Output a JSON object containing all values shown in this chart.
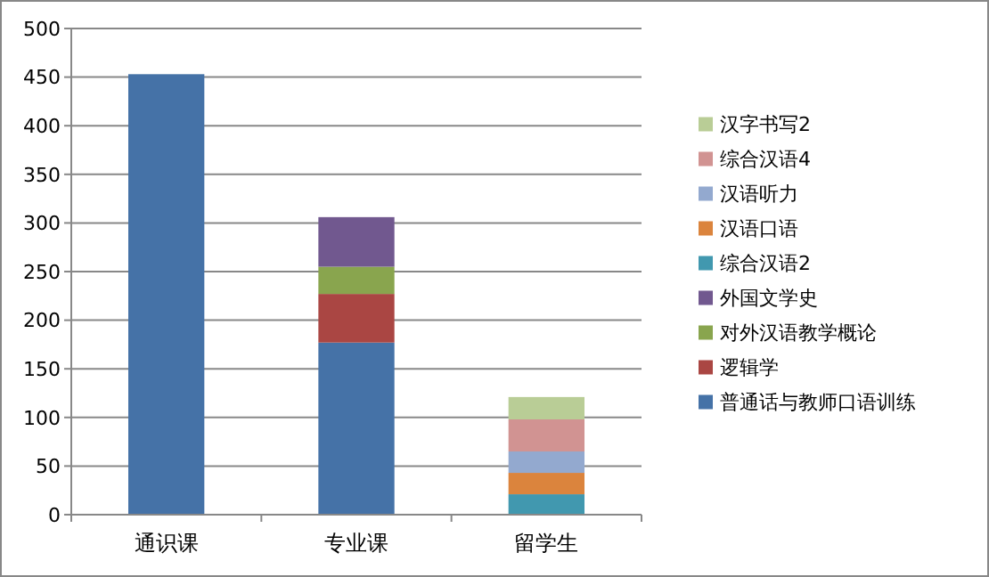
{
  "chart_data": {
    "type": "bar",
    "stacked": true,
    "categories": [
      "通识课",
      "专业课",
      "留学生"
    ],
    "series": [
      {
        "name": "普通话与教师口语训练",
        "color": "#4572a7",
        "values": [
          453,
          177,
          null
        ]
      },
      {
        "name": "逻辑学",
        "color": "#aa4643",
        "values": [
          null,
          50,
          null
        ]
      },
      {
        "name": "对外汉语教学概论",
        "color": "#89a54e",
        "values": [
          null,
          28,
          null
        ]
      },
      {
        "name": "外国文学史",
        "color": "#71588f",
        "values": [
          null,
          51,
          null
        ]
      },
      {
        "name": "综合汉语2",
        "color": "#4198af",
        "values": [
          null,
          null,
          21
        ]
      },
      {
        "name": "汉语口语",
        "color": "#db843d",
        "values": [
          null,
          null,
          22
        ]
      },
      {
        "name": "汉语听力",
        "color": "#93a9cf",
        "values": [
          null,
          null,
          22
        ]
      },
      {
        "name": "综合汉语4",
        "color": "#d19392",
        "values": [
          null,
          null,
          33
        ]
      },
      {
        "name": "汉字书写2",
        "color": "#b9cd96",
        "values": [
          null,
          null,
          23
        ]
      }
    ],
    "ylim": [
      0,
      500
    ],
    "yticks": [
      0,
      50,
      100,
      150,
      200,
      250,
      300,
      350,
      400,
      450,
      500
    ],
    "grid": "y",
    "legend": "right"
  }
}
